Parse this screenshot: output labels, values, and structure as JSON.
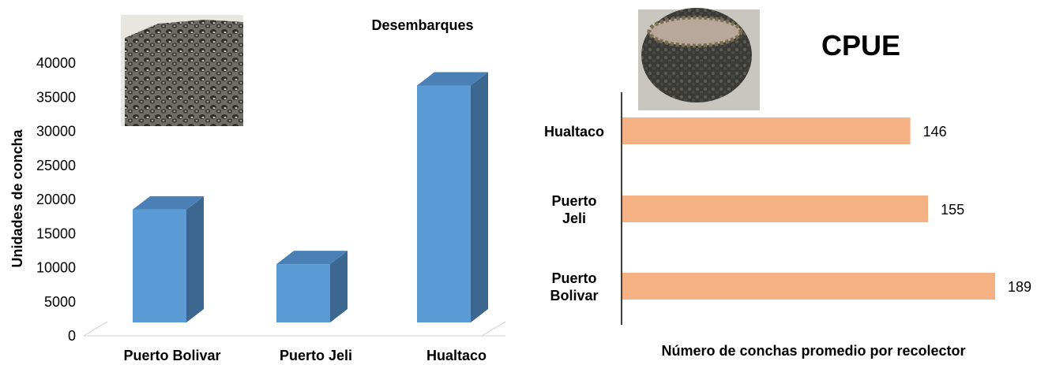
{
  "chart_data": [
    {
      "type": "bar",
      "title": "Desembarques",
      "ylabel": "Unidades de concha",
      "xlabel": "",
      "categories": [
        "Puerto Bolivar",
        "Puerto Jeli",
        "Hualtaco"
      ],
      "values": [
        19200,
        11200,
        37400
      ],
      "ylim": [
        0,
        40000
      ],
      "yticks": [
        "0",
        "5000",
        "10000",
        "15000",
        "20000",
        "25000",
        "30000",
        "35000",
        "40000"
      ],
      "grid": false,
      "style": "3d",
      "colors": {
        "bar_front": "#5b9bd5",
        "bar_side": "#3b6791",
        "bar_top": "#4a80b6"
      },
      "image": "shell-pile-photo"
    },
    {
      "type": "bar",
      "orientation": "horizontal",
      "title": "CPUE",
      "xlabel": "Número de conchas promedio por recolector",
      "categories": [
        [
          "Hualtaco"
        ],
        [
          "Puerto",
          "Jeli"
        ],
        [
          "Puerto",
          "Bolivar"
        ]
      ],
      "values": [
        146,
        155,
        189
      ],
      "data_labels": [
        "146",
        "155",
        "189"
      ],
      "xlim": [
        0,
        200
      ],
      "grid": false,
      "colors": {
        "bar": "#f4b183"
      },
      "image": "shell-basket-photo"
    }
  ]
}
